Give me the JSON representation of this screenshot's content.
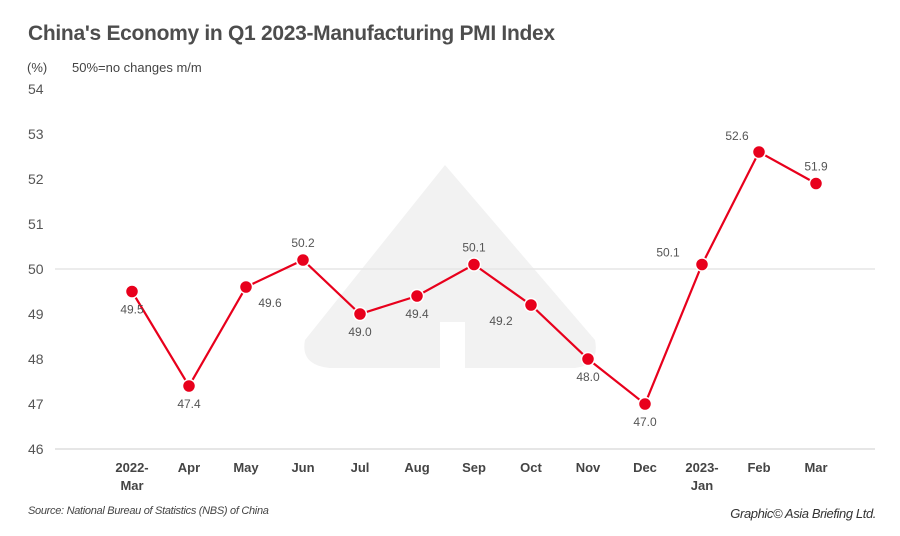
{
  "title": "China's Economy in Q1 2023-Manufacturing PMI Index",
  "unit": "(%)",
  "note": "50%=no changes m/m",
  "source": "Source: National Bureau of Statistics (NBS) of China",
  "credit": "Graphic© Asia Briefing Ltd.",
  "colors": {
    "line": "#e8001c",
    "grid": "#e6e6e6",
    "watermark": "#f2f2f2"
  },
  "chart_data": {
    "type": "line",
    "title": "China's Economy in Q1 2023-Manufacturing PMI Index",
    "ylabel": "(%)",
    "ylim": [
      46,
      54
    ],
    "yticks": [
      46,
      47,
      48,
      49,
      50,
      51,
      52,
      53,
      54
    ],
    "reference_line": 50,
    "grid": false,
    "categories": [
      [
        "2022-",
        "Mar"
      ],
      [
        "Apr"
      ],
      [
        "May"
      ],
      [
        "Jun"
      ],
      [
        "Jul"
      ],
      [
        "Aug"
      ],
      [
        "Sep"
      ],
      [
        "Oct"
      ],
      [
        "Nov"
      ],
      [
        "Dec"
      ],
      [
        "2023-",
        "Jan"
      ],
      [
        "Feb"
      ],
      [
        "Mar"
      ]
    ],
    "values": [
      49.5,
      47.4,
      49.6,
      50.2,
      49.0,
      49.4,
      50.1,
      49.2,
      48.0,
      47.0,
      50.1,
      52.6,
      51.9
    ],
    "labels": [
      "49.5",
      "47.4",
      "49.6",
      "50.2",
      "49.0",
      "49.4",
      "50.1",
      "49.2",
      "48.0",
      "47.0",
      "50.1",
      "52.6",
      "51.9"
    ],
    "label_positions": [
      "below",
      "below",
      "below-right",
      "above",
      "below",
      "below",
      "above",
      "below-left",
      "below",
      "below",
      "left",
      "above-left",
      "above"
    ]
  }
}
